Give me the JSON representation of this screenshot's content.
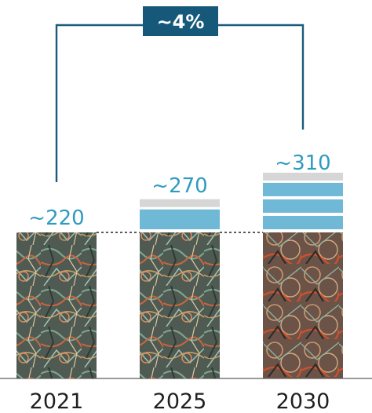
{
  "chart_data": {
    "type": "bar",
    "categories": [
      "2021",
      "2025",
      "2030"
    ],
    "series": [
      {
        "values": [
          220,
          270,
          310
        ]
      }
    ],
    "value_labels": [
      "~220",
      "~270",
      "~310"
    ],
    "base_value": 220,
    "growth_annotation": "~4%",
    "title": "",
    "xlabel": "",
    "ylabel": "",
    "ylim": [
      0,
      320
    ],
    "grid": false,
    "colors": {
      "growth_blue": "#6fb8d6",
      "cap_gray": "#d6d6d6",
      "label_blue": "#2f9bc1",
      "bracket": "#1a5b7a",
      "badge_bg": "#15587a",
      "axis": "#9a9a9a"
    },
    "bar_fill_description_icon": "scrap-metal-wire-photo-texture"
  }
}
